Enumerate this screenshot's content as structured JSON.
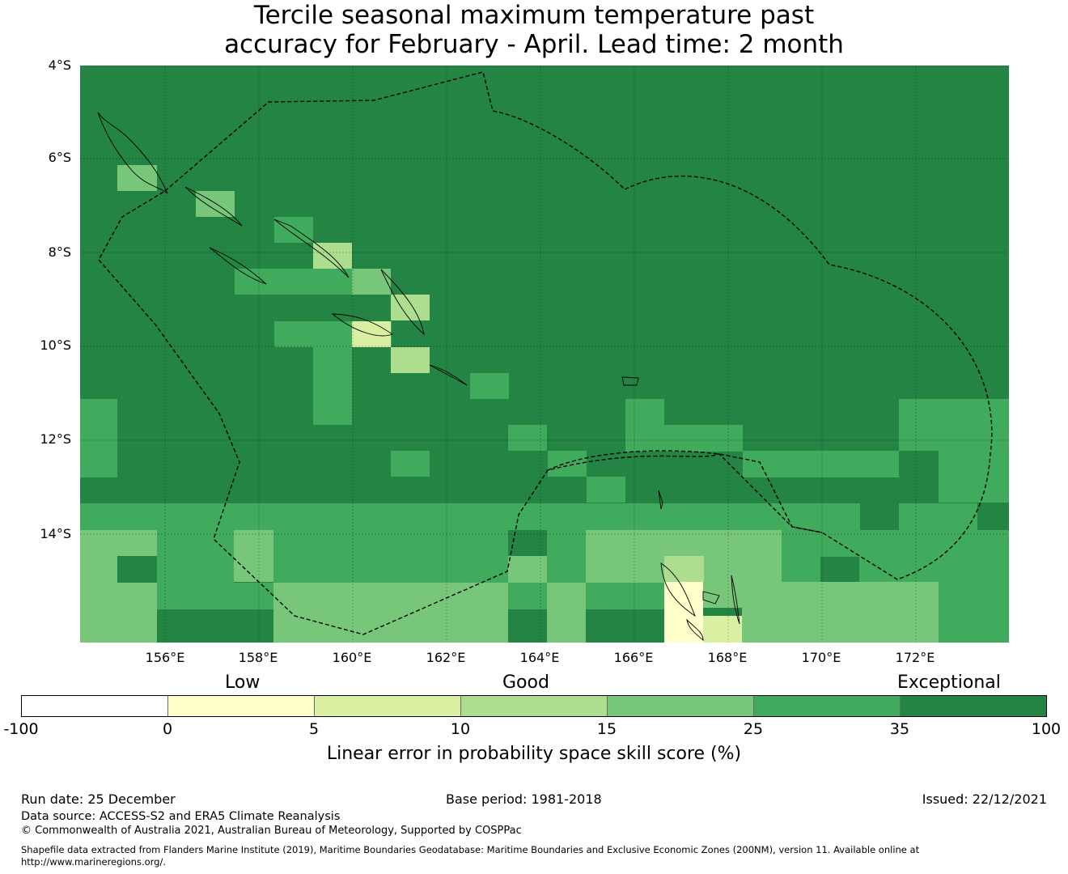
{
  "title": {
    "line1": "Tercile seasonal maximum temperature past",
    "line2": "accuracy for February - April. Lead time: 2 month"
  },
  "map": {
    "latitude_labels": [
      "4°S",
      "6°S",
      "8°S",
      "10°S",
      "12°S",
      "14°S"
    ],
    "longitude_labels": [
      "156°E",
      "158°E",
      "160°E",
      "162°E",
      "164°E",
      "166°E",
      "168°E",
      "170°E",
      "172°E"
    ]
  },
  "legend": {
    "categories": [
      "Low",
      "Good",
      "Exceptional"
    ],
    "ticks": [
      "-100",
      "0",
      "5",
      "10",
      "15",
      "25",
      "35",
      "100"
    ],
    "colors": [
      "#ffffff",
      "#ffffcc",
      "#d9f0a3",
      "#addd8e",
      "#78c679",
      "#41ab5d",
      "#238443"
    ],
    "label": "Linear error in probability space skill score (%)"
  },
  "footer": {
    "run_date": "Run date: 25 December",
    "base_period": "Base period: 1981-2018",
    "issued": "Issued: 22/12/2021",
    "data_source": "Data source: ACCESS-S2 and ERA5 Climate Reanalysis",
    "copyright": "© Commonwealth of Australia 2021, Australian Bureau of Meteorology, Supported by COSPPac",
    "shapefile_1": "Shapefile data extracted from Flanders Marine Institute (2019), Maritime Boundaries Geodatabase: Maritime Boundaries and Exclusive Economic Zones (200NM), version 11. Available online at",
    "shapefile_2": "http://www.marineregions.org/."
  }
}
